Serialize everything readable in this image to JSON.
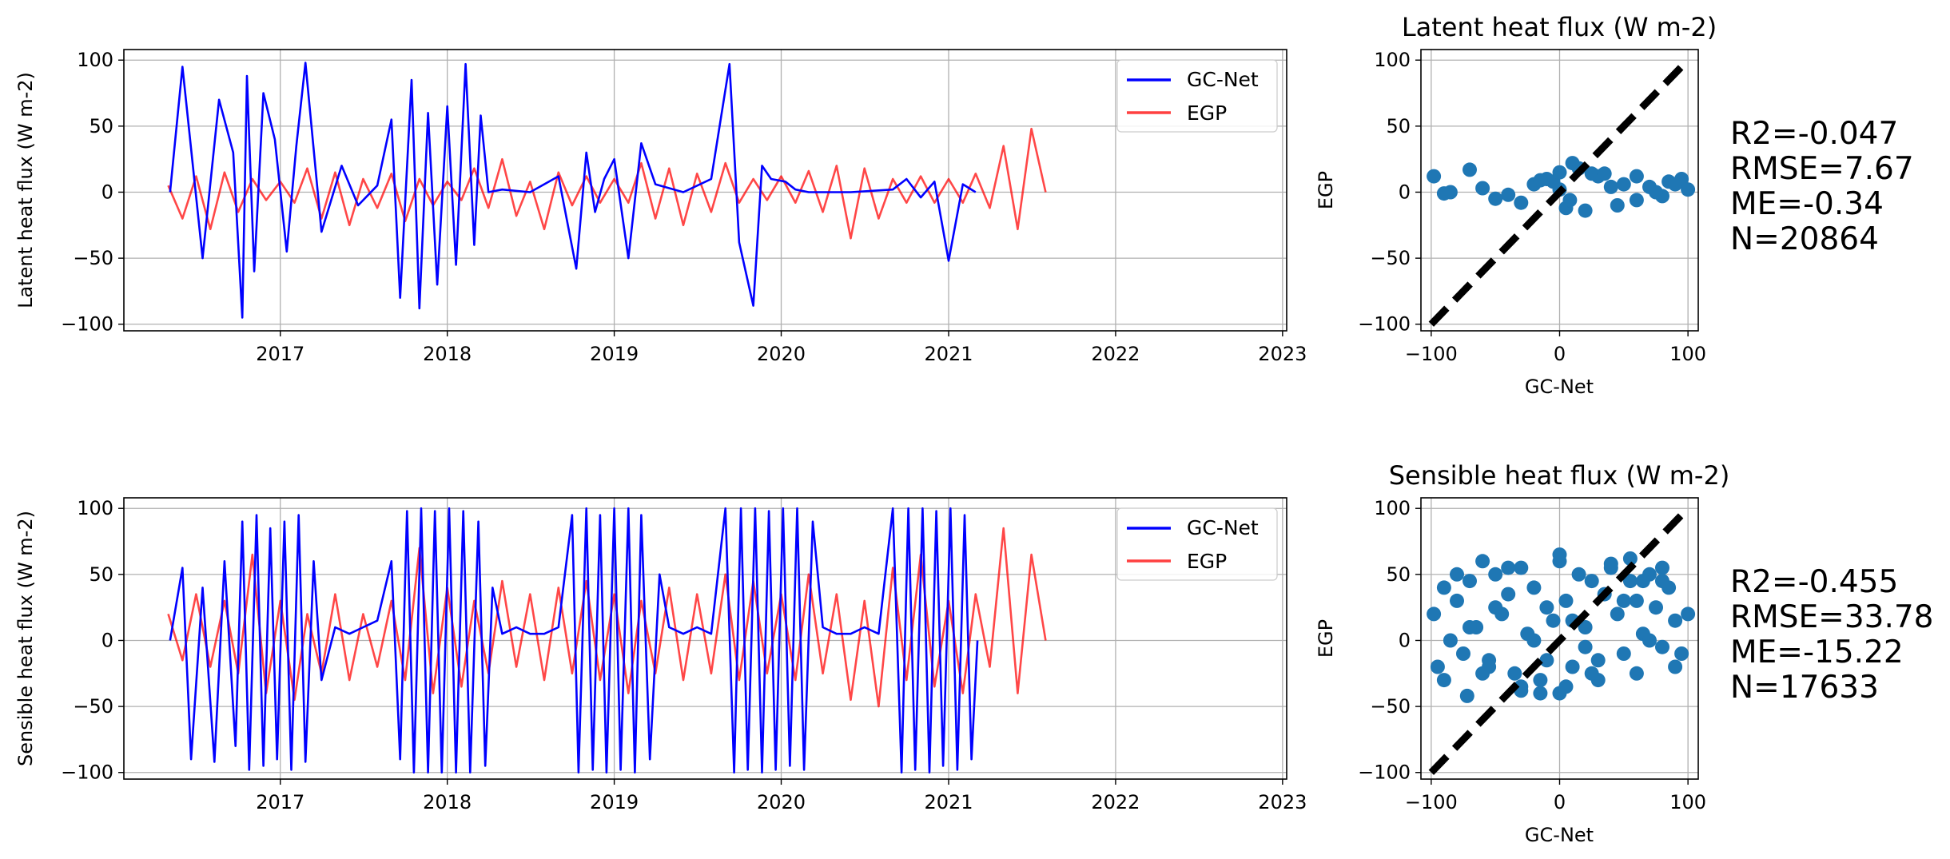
{
  "colors": {
    "gcnet": "#0000ff",
    "egp": "#ff0000",
    "scatter": "#1f77b4",
    "identity_line": "#000000",
    "grid": "#b0b0b0"
  },
  "chart_data": [
    {
      "id": "ts-latent",
      "type": "line",
      "title": "",
      "xlabel": "",
      "ylabel": "Latent heat flux (W m-2)",
      "x_ticks": [
        "2017",
        "2018",
        "2019",
        "2020",
        "2021",
        "2022",
        "2023"
      ],
      "xlim": [
        "2016-01-25",
        "2023-01-10"
      ],
      "ylim": [
        -105,
        108
      ],
      "y_ticks": [
        100,
        50,
        0,
        -50,
        -100
      ],
      "grid": true,
      "legend": "top-right",
      "series": [
        {
          "name": "GC-Net",
          "color": "#0000ff",
          "x": [
            "2016-05-05",
            "2016-06-01",
            "2016-07-15",
            "2016-08-20",
            "2016-09-20",
            "2016-10-10",
            "2016-10-20",
            "2016-11-05",
            "2016-11-25",
            "2016-12-20",
            "2017-01-15",
            "2017-02-05",
            "2017-02-25",
            "2017-04-01",
            "2017-05-15",
            "2017-06-20",
            "2017-08-01",
            "2017-09-01",
            "2017-09-20",
            "2017-10-15",
            "2017-11-01",
            "2017-11-20",
            "2017-12-10",
            "2018-01-01",
            "2018-01-20",
            "2018-02-10",
            "2018-03-01",
            "2018-03-15",
            "2018-04-01",
            "2018-05-01",
            "2018-07-01",
            "2018-09-01",
            "2018-10-10",
            "2018-11-01",
            "2018-11-20",
            "2018-12-10",
            "2019-01-01",
            "2019-02-01",
            "2019-03-01",
            "2019-04-01",
            "2019-06-01",
            "2019-08-01",
            "2019-09-10",
            "2019-10-01",
            "2019-11-01",
            "2019-11-20",
            "2019-12-10",
            "2020-01-10",
            "2020-02-01",
            "2020-03-01",
            "2020-06-01",
            "2020-09-01",
            "2020-10-01",
            "2020-11-01",
            "2020-12-01",
            "2021-01-01",
            "2021-02-01",
            "2021-03-01"
          ],
          "y": [
            0,
            95,
            -50,
            70,
            30,
            -95,
            88,
            -60,
            75,
            40,
            -45,
            35,
            98,
            -30,
            20,
            -10,
            5,
            55,
            -80,
            85,
            -88,
            60,
            -70,
            65,
            -55,
            97,
            -40,
            58,
            0,
            2,
            0,
            12,
            -58,
            30,
            -15,
            10,
            25,
            -50,
            37,
            6,
            0,
            10,
            97,
            -38,
            -86,
            20,
            10,
            8,
            2,
            0,
            0,
            2,
            10,
            -4,
            8,
            -52,
            6,
            0
          ]
        },
        {
          "name": "EGP",
          "color": "#ff0000",
          "x": [
            "2016-05-01",
            "2016-06-01",
            "2016-07-01",
            "2016-08-01",
            "2016-09-01",
            "2016-10-01",
            "2016-11-01",
            "2016-12-01",
            "2017-01-01",
            "2017-02-01",
            "2017-03-01",
            "2017-04-01",
            "2017-05-01",
            "2017-06-01",
            "2017-07-01",
            "2017-08-01",
            "2017-09-01",
            "2017-10-01",
            "2017-11-01",
            "2017-12-01",
            "2018-01-01",
            "2018-02-01",
            "2018-03-01",
            "2018-04-01",
            "2018-05-01",
            "2018-06-01",
            "2018-07-01",
            "2018-08-01",
            "2018-09-01",
            "2018-10-01",
            "2018-11-01",
            "2018-12-01",
            "2019-01-01",
            "2019-02-01",
            "2019-03-01",
            "2019-04-01",
            "2019-05-01",
            "2019-06-01",
            "2019-07-01",
            "2019-08-01",
            "2019-09-01",
            "2019-10-01",
            "2019-11-01",
            "2019-12-01",
            "2020-01-01",
            "2020-02-01",
            "2020-03-01",
            "2020-04-01",
            "2020-05-01",
            "2020-06-01",
            "2020-07-01",
            "2020-08-01",
            "2020-09-01",
            "2020-10-01",
            "2020-11-01",
            "2020-12-01",
            "2021-01-01",
            "2021-02-01",
            "2021-03-01",
            "2021-04-01",
            "2021-05-01",
            "2021-06-01",
            "2021-07-01",
            "2021-08-01"
          ],
          "y": [
            5,
            -20,
            12,
            -28,
            15,
            -15,
            10,
            -6,
            8,
            -8,
            18,
            -20,
            15,
            -25,
            10,
            -12,
            14,
            -22,
            10,
            -10,
            8,
            -6,
            18,
            -12,
            25,
            -18,
            8,
            -28,
            15,
            -10,
            12,
            -8,
            10,
            -8,
            22,
            -20,
            18,
            -25,
            14,
            -15,
            22,
            -8,
            10,
            -6,
            12,
            -8,
            16,
            -15,
            20,
            -35,
            18,
            -20,
            10,
            -8,
            12,
            -8,
            10,
            -8,
            14,
            -12,
            35,
            -28,
            48,
            0
          ]
        }
      ]
    },
    {
      "id": "sc-latent",
      "type": "scatter",
      "title": "Latent heat flux (W m-2)",
      "xlabel": "GC-Net",
      "ylabel": "EGP",
      "xlim": [
        -108,
        108
      ],
      "ylim": [
        -105,
        108
      ],
      "x_ticks": [
        -100,
        0,
        100
      ],
      "y_ticks": [
        100,
        50,
        0,
        -50,
        -100
      ],
      "grid": true,
      "identity_line": [
        [
          -100,
          -100
        ],
        [
          100,
          100
        ]
      ],
      "x": [
        -98,
        -70,
        -85,
        -60,
        -40,
        -20,
        -5,
        0,
        10,
        30,
        50,
        70,
        85,
        95,
        100,
        -50,
        -30,
        5,
        20,
        40,
        60,
        80,
        -90,
        -10,
        0,
        15,
        25,
        45,
        75,
        90,
        -15,
        8,
        60,
        35
      ],
      "y": [
        12,
        17,
        0,
        3,
        -2,
        6,
        8,
        15,
        22,
        12,
        6,
        4,
        8,
        10,
        2,
        -5,
        -8,
        -12,
        -14,
        4,
        -6,
        -3,
        -1,
        10,
        2,
        18,
        14,
        -10,
        0,
        6,
        9,
        -6,
        12,
        14
      ],
      "stats": {
        "r2": "R2=-0.047",
        "rmse": "RMSE=7.67",
        "me": "ME=-0.34",
        "n": "N=20864"
      }
    },
    {
      "id": "ts-sensible",
      "type": "line",
      "title": "",
      "xlabel": "",
      "ylabel": "Sensible heat flux (W m-2)",
      "x_ticks": [
        "2017",
        "2018",
        "2019",
        "2020",
        "2021",
        "2022",
        "2023"
      ],
      "xlim": [
        "2016-01-25",
        "2023-01-10"
      ],
      "ylim": [
        -105,
        108
      ],
      "y_ticks": [
        100,
        50,
        0,
        -50,
        -100
      ],
      "grid": true,
      "legend": "top-right",
      "series": [
        {
          "name": "GC-Net",
          "color": "#0000ff",
          "x": [
            "2016-05-05",
            "2016-06-01",
            "2016-06-20",
            "2016-07-15",
            "2016-08-10",
            "2016-09-01",
            "2016-09-25",
            "2016-10-10",
            "2016-10-25",
            "2016-11-10",
            "2016-11-25",
            "2016-12-10",
            "2016-12-25",
            "2017-01-10",
            "2017-01-25",
            "2017-02-10",
            "2017-02-25",
            "2017-03-15",
            "2017-04-01",
            "2017-05-01",
            "2017-06-01",
            "2017-07-01",
            "2017-08-01",
            "2017-09-01",
            "2017-09-20",
            "2017-10-05",
            "2017-10-20",
            "2017-11-05",
            "2017-11-20",
            "2017-12-05",
            "2017-12-20",
            "2018-01-05",
            "2018-01-20",
            "2018-02-05",
            "2018-02-20",
            "2018-03-10",
            "2018-03-25",
            "2018-04-10",
            "2018-05-01",
            "2018-06-01",
            "2018-07-01",
            "2018-08-01",
            "2018-09-01",
            "2018-10-01",
            "2018-10-15",
            "2018-11-01",
            "2018-11-15",
            "2018-12-01",
            "2018-12-15",
            "2019-01-01",
            "2019-01-15",
            "2019-02-01",
            "2019-02-15",
            "2019-03-01",
            "2019-03-20",
            "2019-04-10",
            "2019-05-01",
            "2019-06-01",
            "2019-07-01",
            "2019-08-01",
            "2019-09-01",
            "2019-09-20",
            "2019-10-05",
            "2019-10-20",
            "2019-11-05",
            "2019-11-20",
            "2019-12-05",
            "2019-12-20",
            "2020-01-05",
            "2020-01-20",
            "2020-02-05",
            "2020-02-20",
            "2020-03-10",
            "2020-04-01",
            "2020-05-01",
            "2020-06-01",
            "2020-07-01",
            "2020-08-01",
            "2020-09-01",
            "2020-09-20",
            "2020-10-05",
            "2020-10-20",
            "2020-11-05",
            "2020-11-20",
            "2020-12-05",
            "2020-12-20",
            "2021-01-05",
            "2021-01-20",
            "2021-02-05",
            "2021-02-20",
            "2021-03-05"
          ],
          "y": [
            0,
            55,
            -90,
            40,
            -92,
            60,
            -80,
            90,
            -98,
            95,
            -95,
            85,
            -90,
            90,
            -98,
            95,
            -92,
            60,
            -30,
            10,
            5,
            10,
            15,
            60,
            -90,
            98,
            -100,
            100,
            -100,
            98,
            -100,
            100,
            -100,
            98,
            -100,
            90,
            -95,
            40,
            5,
            10,
            5,
            5,
            10,
            95,
            -100,
            100,
            -98,
            95,
            -100,
            100,
            -98,
            100,
            -100,
            95,
            -90,
            50,
            10,
            5,
            10,
            5,
            100,
            -100,
            100,
            -98,
            100,
            -100,
            98,
            -98,
            100,
            -95,
            100,
            -98,
            90,
            10,
            5,
            5,
            10,
            5,
            100,
            -100,
            100,
            -98,
            100,
            -100,
            98,
            -95,
            100,
            -98,
            95,
            -90,
            0
          ]
        },
        {
          "name": "EGP",
          "color": "#ff0000",
          "x": [
            "2016-05-01",
            "2016-06-01",
            "2016-07-01",
            "2016-08-01",
            "2016-09-01",
            "2016-10-01",
            "2016-11-01",
            "2016-12-01",
            "2017-01-01",
            "2017-02-01",
            "2017-03-01",
            "2017-04-01",
            "2017-05-01",
            "2017-06-01",
            "2017-07-01",
            "2017-08-01",
            "2017-09-01",
            "2017-10-01",
            "2017-11-01",
            "2017-12-01",
            "2018-01-01",
            "2018-02-01",
            "2018-03-01",
            "2018-04-01",
            "2018-05-01",
            "2018-06-01",
            "2018-07-01",
            "2018-08-01",
            "2018-09-01",
            "2018-10-01",
            "2018-11-01",
            "2018-12-01",
            "2019-01-01",
            "2019-02-01",
            "2019-03-01",
            "2019-04-01",
            "2019-05-01",
            "2019-06-01",
            "2019-07-01",
            "2019-08-01",
            "2019-09-01",
            "2019-10-01",
            "2019-11-01",
            "2019-12-01",
            "2020-01-01",
            "2020-02-01",
            "2020-03-01",
            "2020-04-01",
            "2020-05-01",
            "2020-06-01",
            "2020-07-01",
            "2020-08-01",
            "2020-09-01",
            "2020-10-01",
            "2020-11-01",
            "2020-12-01",
            "2021-01-01",
            "2021-02-01",
            "2021-03-01",
            "2021-04-01",
            "2021-05-01",
            "2021-06-01",
            "2021-07-01",
            "2021-08-01"
          ],
          "y": [
            20,
            -15,
            35,
            -20,
            30,
            -25,
            65,
            -40,
            30,
            -45,
            20,
            -25,
            35,
            -30,
            20,
            -20,
            30,
            -30,
            70,
            -40,
            40,
            -35,
            30,
            -25,
            45,
            -20,
            35,
            -30,
            40,
            -25,
            45,
            -30,
            35,
            -40,
            30,
            -25,
            40,
            -30,
            35,
            -25,
            50,
            -30,
            45,
            -25,
            35,
            -30,
            50,
            -25,
            35,
            -45,
            30,
            -50,
            55,
            -30,
            65,
            -35,
            30,
            -40,
            35,
            -20,
            85,
            -40,
            65,
            0
          ]
        }
      ]
    },
    {
      "id": "sc-sensible",
      "type": "scatter",
      "title": "Sensible heat flux (W m-2)",
      "xlabel": "GC-Net",
      "ylabel": "EGP",
      "xlim": [
        -108,
        108
      ],
      "ylim": [
        -105,
        108
      ],
      "x_ticks": [
        -100,
        0,
        100
      ],
      "y_ticks": [
        100,
        50,
        0,
        -50,
        -100
      ],
      "grid": true,
      "identity_line": [
        [
          -100,
          -100
        ],
        [
          100,
          100
        ]
      ],
      "x": [
        -98,
        -95,
        -90,
        -85,
        -80,
        -75,
        -70,
        -65,
        -60,
        -55,
        -50,
        -45,
        -40,
        -35,
        -30,
        -25,
        -20,
        -15,
        -10,
        -5,
        0,
        5,
        10,
        15,
        20,
        25,
        30,
        35,
        40,
        45,
        50,
        55,
        60,
        65,
        70,
        75,
        80,
        85,
        90,
        95,
        100,
        -90,
        -60,
        -30,
        0,
        30,
        60,
        90,
        -80,
        -40,
        0,
        40,
        80,
        -70,
        -20,
        20,
        70,
        -50,
        50,
        10,
        -10,
        -72,
        -55,
        -30,
        -15,
        5,
        25,
        55,
        65,
        80
      ],
      "y": [
        20,
        -20,
        40,
        0,
        30,
        -10,
        45,
        10,
        60,
        -15,
        50,
        20,
        35,
        -25,
        55,
        5,
        40,
        -30,
        25,
        15,
        60,
        30,
        -20,
        50,
        10,
        45,
        -15,
        35,
        55,
        20,
        -10,
        45,
        30,
        5,
        50,
        25,
        -5,
        40,
        15,
        -10,
        20,
        -30,
        -25,
        -35,
        -40,
        -30,
        -25,
        -20,
        50,
        55,
        65,
        58,
        45,
        10,
        0,
        -5,
        0,
        25,
        30,
        15,
        -15,
        -42,
        -20,
        -38,
        -40,
        -35,
        -25,
        62,
        45,
        55
      ],
      "stats": {
        "r2": "R2=-0.455",
        "rmse": "RMSE=33.78",
        "me": "ME=-15.22",
        "n": "N=17633"
      }
    }
  ]
}
